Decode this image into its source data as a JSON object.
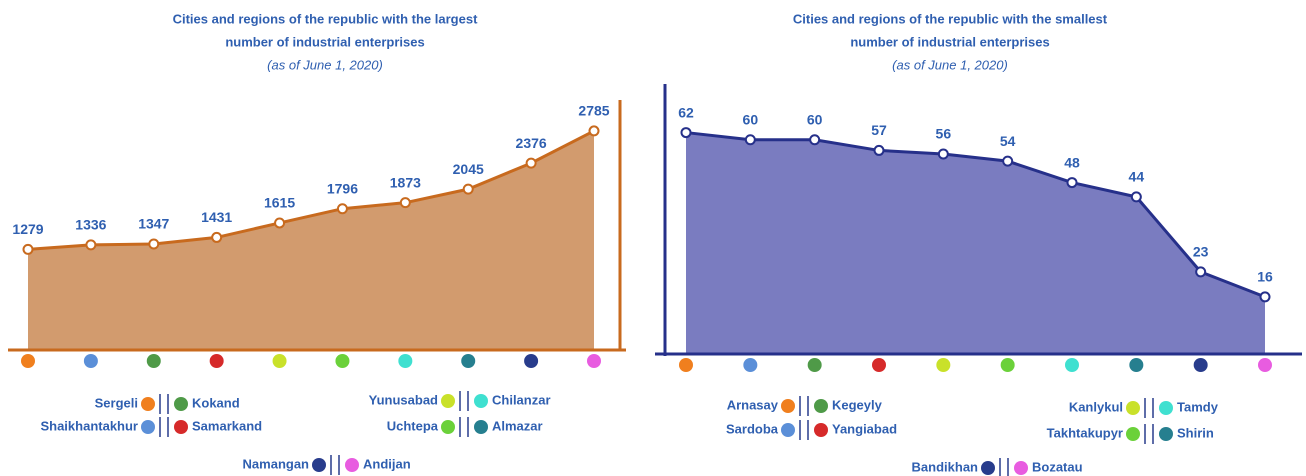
{
  "chart_data": [
    {
      "type": "area",
      "title": [
        "Cities and regions of the republic with the largest",
        "number of industrial enterprises"
      ],
      "subtitle": "(as of June 1, 2020)",
      "categories": [
        "Sergeli",
        "Shaikhantakhur",
        "Kokand",
        "Samarkand",
        "Yunusabad",
        "Uchtepa",
        "Chilanzar",
        "Almazar",
        "Namangan",
        "Andijan"
      ],
      "values": [
        1279,
        1336,
        1347,
        1431,
        1615,
        1796,
        1873,
        2045,
        2376,
        2785
      ],
      "colors": [
        "#f07f1e",
        "#5b8fd8",
        "#4f9a48",
        "#d62a2a",
        "#c9e12a",
        "#6bd13a",
        "#3fe0d0",
        "#267f8f",
        "#283c8c",
        "#e85ce0"
      ],
      "color": "#d29b6e",
      "line_color": "#c86a1e",
      "ylim": [
        0,
        3000
      ]
    },
    {
      "type": "area",
      "title": [
        "Cities and regions of the republic with the smallest",
        "number of industrial enterprises"
      ],
      "subtitle": "(as of June 1, 2020)",
      "categories": [
        "Arnasay",
        "Sardoba",
        "Kegeyly",
        "Yangiabad",
        "Kanlykul",
        "Takhtakupyr",
        "Tamdy",
        "Shirin",
        "Bandikhan",
        "Bozatau"
      ],
      "values": [
        62,
        60,
        60,
        57,
        56,
        54,
        48,
        44,
        23,
        16
      ],
      "colors": [
        "#f07f1e",
        "#5b8fd8",
        "#4f9a48",
        "#d62a2a",
        "#c9e12a",
        "#6bd13a",
        "#3fe0d0",
        "#267f8f",
        "#283c8c",
        "#e85ce0"
      ],
      "color": "#7a7cc0",
      "line_color": "#26308a",
      "ylim": [
        0,
        70
      ]
    }
  ]
}
